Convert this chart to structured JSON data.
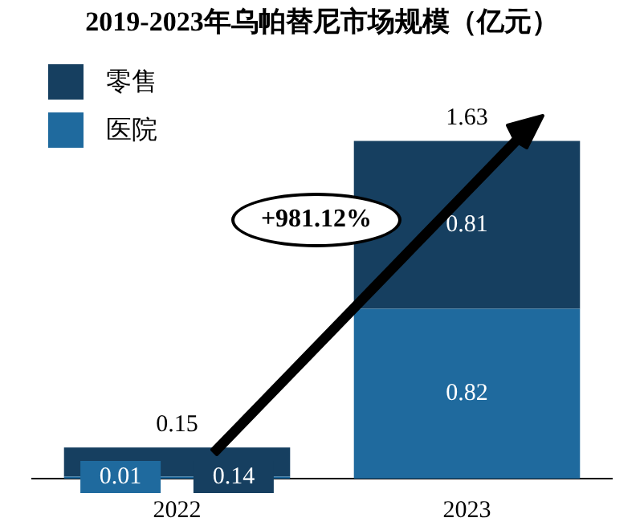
{
  "chart_data": {
    "type": "bar",
    "title": "2019-2023年乌帕替尼市场规模（亿元）",
    "categories": [
      "2022",
      "2023"
    ],
    "stacked": true,
    "data_labels": true,
    "legend": "top left",
    "totals": [
      "0.15",
      "1.63"
    ],
    "annotations": [
      "+981.12%"
    ],
    "series": [
      {
        "name": "医院",
        "color": "#1f6a9e",
        "values": [
          0.01,
          0.82
        ]
      },
      {
        "name": "零售",
        "color": "#163f60",
        "values": [
          0.14,
          0.81
        ]
      }
    ]
  }
}
